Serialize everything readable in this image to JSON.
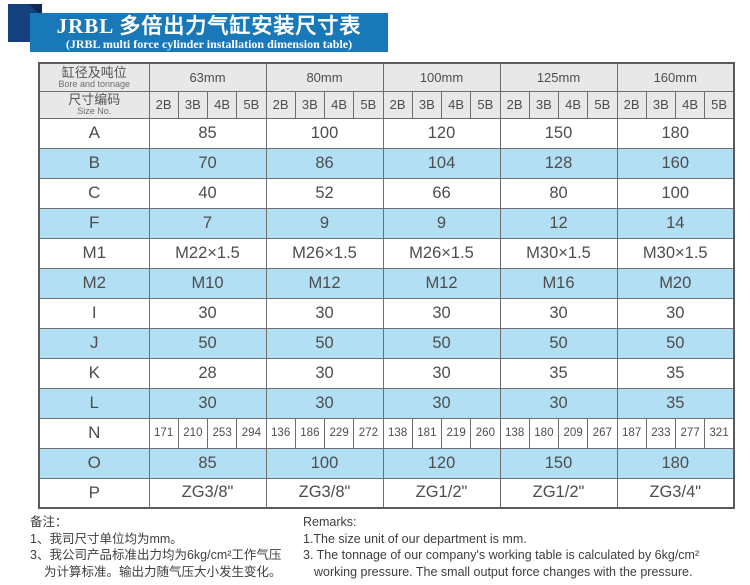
{
  "colors": {
    "banner_blue": "#1878b8",
    "ribbon_navy": "#16407d",
    "ribbon_fold": "#0d2a55",
    "header_gray": "#e8e8e8",
    "row_blue": "#b3dff5",
    "border": "#6e6e6e",
    "text": "#4d4d4d"
  },
  "header": {
    "title_cn": "JRBL 多倍出力气缸安装尺寸表",
    "title_en": "(JRBL multi force cylinder installation dimension table)"
  },
  "table": {
    "corner": {
      "bore_cn": "缸径及吨位",
      "bore_en": "Bore and tonnage",
      "size_cn": "尺寸编码",
      "size_en": "Size No."
    },
    "bore_sizes": [
      "63mm",
      "80mm",
      "100mm",
      "125mm",
      "160mm"
    ],
    "size_codes": [
      "2B",
      "3B",
      "4B",
      "5B"
    ],
    "rows": [
      {
        "label": "A",
        "merged": true,
        "shaded": false,
        "values": [
          "85",
          "100",
          "120",
          "150",
          "180"
        ]
      },
      {
        "label": "B",
        "merged": true,
        "shaded": true,
        "values": [
          "70",
          "86",
          "104",
          "128",
          "160"
        ]
      },
      {
        "label": "C",
        "merged": true,
        "shaded": false,
        "values": [
          "40",
          "52",
          "66",
          "80",
          "100"
        ]
      },
      {
        "label": "F",
        "merged": true,
        "shaded": true,
        "values": [
          "7",
          "9",
          "9",
          "12",
          "14"
        ]
      },
      {
        "label": "M1",
        "merged": true,
        "shaded": false,
        "values": [
          "M22×1.5",
          "M26×1.5",
          "M26×1.5",
          "M30×1.5",
          "M30×1.5"
        ]
      },
      {
        "label": "M2",
        "merged": true,
        "shaded": true,
        "values": [
          "M10",
          "M12",
          "M12",
          "M16",
          "M20"
        ]
      },
      {
        "label": "I",
        "merged": true,
        "shaded": false,
        "values": [
          "30",
          "30",
          "30",
          "30",
          "30"
        ]
      },
      {
        "label": "J",
        "merged": true,
        "shaded": true,
        "values": [
          "50",
          "50",
          "50",
          "50",
          "50"
        ]
      },
      {
        "label": "K",
        "merged": true,
        "shaded": false,
        "values": [
          "28",
          "30",
          "30",
          "35",
          "35"
        ]
      },
      {
        "label": "L",
        "merged": true,
        "shaded": true,
        "values": [
          "30",
          "30",
          "30",
          "30",
          "35"
        ]
      },
      {
        "label": "N",
        "merged": false,
        "shaded": false,
        "values": [
          [
            "171",
            "210",
            "253",
            "294"
          ],
          [
            "136",
            "186",
            "229",
            "272"
          ],
          [
            "138",
            "181",
            "219",
            "260"
          ],
          [
            "138",
            "180",
            "209",
            "267"
          ],
          [
            "187",
            "233",
            "277",
            "321"
          ]
        ]
      },
      {
        "label": "O",
        "merged": true,
        "shaded": true,
        "values": [
          "85",
          "100",
          "120",
          "150",
          "180"
        ]
      },
      {
        "label": "P",
        "merged": true,
        "shaded": false,
        "values": [
          "ZG3/8\"",
          "ZG3/8\"",
          "ZG1/2\"",
          "ZG1/2\"",
          "ZG3/4\""
        ]
      }
    ]
  },
  "footnotes": {
    "cn": {
      "title": "备注：",
      "line1": "1、我司尺寸单位均为mm。",
      "line2": "3、我公司产品标准出力均为6kg/cm²工作气压",
      "line3": "为计算标准。输出力随气压大小发生变化。"
    },
    "en": {
      "title": "Remarks:",
      "line1": "1.The size unit of our department is mm.",
      "line2": "3. The tonnage of our company's working table is calculated by 6kg/cm²",
      "line3": "working pressure. The small output force changes with the pressure."
    }
  }
}
